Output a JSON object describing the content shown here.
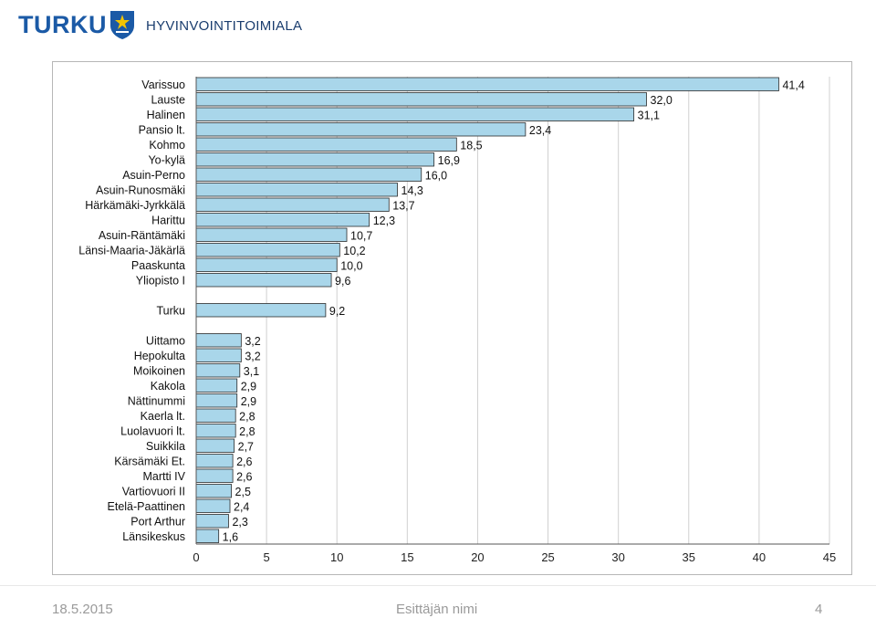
{
  "header": {
    "brand": "TURKU",
    "department": "HYVINVOINTITOIMIALA",
    "crest_icon": "turku-coat-of-arms-icon",
    "brand_color": "#1b5aa6"
  },
  "footer": {
    "date": "18.5.2015",
    "presenter": "Esittäjän nimi",
    "page": "4"
  },
  "chart_data": {
    "type": "bar",
    "orientation": "horizontal",
    "title": "",
    "xlabel": "",
    "ylabel": "",
    "xlim": [
      0,
      45
    ],
    "xticks": [
      "0",
      "5",
      "10",
      "15",
      "20",
      "25",
      "30",
      "35",
      "40",
      "45"
    ],
    "grid": true,
    "bar_color": "#a9d6ea",
    "bar_edge_color": "#2b2b2b",
    "groups": [
      {
        "categories": [
          "Varissuo",
          "Lauste",
          "Halinen",
          "Pansio lt.",
          "Kohmo",
          "Yo-kylä",
          "Asuin-Perno",
          "Asuin-Runosmäki",
          "Härkämäki-Jyrkkälä",
          "Harittu",
          "Asuin-Räntämäki",
          "Länsi-Maaria-Jäkärlä",
          "Paaskunta",
          "Yliopisto I"
        ],
        "values": [
          41.4,
          32.0,
          31.1,
          23.4,
          18.5,
          16.9,
          16.0,
          14.3,
          13.7,
          12.3,
          10.7,
          10.2,
          10.0,
          9.6
        ],
        "labels": [
          "41,4",
          "32,0",
          "31,1",
          "23,4",
          "18,5",
          "16,9",
          "16,0",
          "14,3",
          "13,7",
          "12,3",
          "10,7",
          "10,2",
          "10,0",
          "9,6"
        ]
      },
      {
        "categories": [
          "Turku"
        ],
        "values": [
          9.2
        ],
        "labels": [
          "9,2"
        ]
      },
      {
        "categories": [
          "Uittamo",
          "Hepokulta",
          "Moikoinen",
          "Kakola",
          "Nättinummi",
          "Kaerla lt.",
          "Luolavuori lt.",
          "Suikkila",
          "Kärsämäki Et.",
          "Martti IV",
          "Vartiovuori II",
          "Etelä-Paattinen",
          "Port Arthur",
          "Länsikeskus"
        ],
        "values": [
          3.2,
          3.2,
          3.1,
          2.9,
          2.9,
          2.8,
          2.8,
          2.7,
          2.6,
          2.6,
          2.5,
          2.4,
          2.3,
          1.6
        ],
        "labels": [
          "3,2",
          "3,2",
          "3,1",
          "2,9",
          "2,9",
          "2,8",
          "2,8",
          "2,7",
          "2,6",
          "2,6",
          "2,5",
          "2,4",
          "2,3",
          "1,6"
        ]
      }
    ]
  }
}
